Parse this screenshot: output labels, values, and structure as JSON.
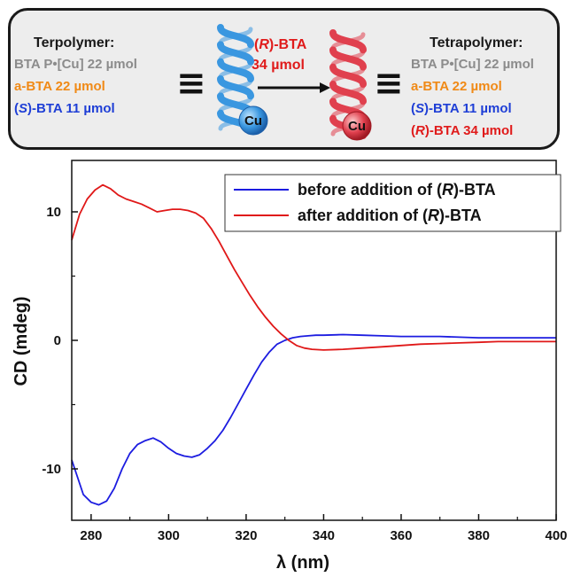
{
  "scheme": {
    "left": {
      "title": "Terpolymer:",
      "lines": [
        {
          "prefix": "",
          "italic": "",
          "suffix": "BTA P•[Cu] 22 µmol",
          "color": "#8c8c8c"
        },
        {
          "prefix": "",
          "italic": "",
          "suffix": "a-BTA  22 µmol",
          "color": "#f08a17"
        },
        {
          "prefix": "(",
          "italic": "S",
          "suffix": ")-BTA  11 µmol",
          "color": "#1f3fd6"
        }
      ]
    },
    "right": {
      "title": "Tetrapolymer:",
      "lines": [
        {
          "prefix": "",
          "italic": "",
          "suffix": "BTA P•[Cu] 22 µmol",
          "color": "#8c8c8c"
        },
        {
          "prefix": "",
          "italic": "",
          "suffix": "a-BTA  22 µmol",
          "color": "#f08a17"
        },
        {
          "prefix": "(",
          "italic": "S",
          "suffix": ")-BTA  11 µmol",
          "color": "#1f3fd6"
        },
        {
          "prefix": "(",
          "italic": "R",
          "suffix": ")-BTA  34 µmol",
          "color": "#e01b1b"
        }
      ]
    },
    "arrow": {
      "line1_prefix": "(",
      "line1_italic": "R",
      "line1_suffix": ")-BTA",
      "line2": "34 µmol",
      "color": "#e01b1b"
    },
    "equiv_symbol": "≡",
    "cu_label": "Cu",
    "helix_colors": {
      "before": "#3a97e0",
      "after": "#e0404e"
    }
  },
  "chart_data": {
    "type": "line",
    "xlabel": "λ (nm)",
    "ylabel": "CD (mdeg)",
    "xlim": [
      275,
      400
    ],
    "ylim": [
      -14,
      14
    ],
    "xticks": [
      280,
      300,
      320,
      340,
      360,
      380,
      400
    ],
    "yticks": [
      {
        "value": 10,
        "label": "10"
      },
      {
        "value": 0,
        "label": "0"
      },
      {
        "value": -10,
        "label": "-10"
      }
    ],
    "grid": false,
    "legend_placement": "top-right",
    "series": [
      {
        "name_prefix": "before addition of (",
        "name_italic": "R",
        "name_suffix": ")-BTA",
        "color": "#1c1ce0",
        "x": [
          275,
          278,
          280,
          282,
          284,
          286,
          288,
          290,
          292,
          294,
          296,
          298,
          300,
          302,
          304,
          306,
          308,
          310,
          312,
          314,
          316,
          318,
          320,
          322,
          324,
          326,
          328,
          330,
          332,
          334,
          336,
          338,
          340,
          345,
          350,
          355,
          360,
          365,
          370,
          375,
          380,
          385,
          390,
          395,
          400
        ],
        "y": [
          -9.3,
          -12.0,
          -12.6,
          -12.8,
          -12.5,
          -11.5,
          -10.0,
          -8.8,
          -8.1,
          -7.8,
          -7.6,
          -7.9,
          -8.4,
          -8.8,
          -9.0,
          -9.1,
          -8.9,
          -8.4,
          -7.8,
          -7.0,
          -6.0,
          -4.9,
          -3.8,
          -2.7,
          -1.7,
          -0.9,
          -0.3,
          0.0,
          0.2,
          0.3,
          0.35,
          0.4,
          0.4,
          0.45,
          0.4,
          0.35,
          0.3,
          0.3,
          0.3,
          0.25,
          0.2,
          0.2,
          0.2,
          0.2,
          0.2
        ]
      },
      {
        "name_prefix": "after addition of (",
        "name_italic": "R",
        "name_suffix": ")-BTA",
        "color": "#e01818",
        "x": [
          275,
          277,
          279,
          281,
          283,
          285,
          287,
          289,
          291,
          293,
          295,
          297,
          299,
          301,
          303,
          305,
          307,
          309,
          311,
          313,
          315,
          317,
          319,
          321,
          323,
          325,
          327,
          329,
          331,
          333,
          335,
          337,
          340,
          345,
          350,
          355,
          360,
          365,
          370,
          375,
          380,
          385,
          390,
          395,
          400
        ],
        "y": [
          7.8,
          9.8,
          11.0,
          11.7,
          12.1,
          11.8,
          11.3,
          11.0,
          10.8,
          10.6,
          10.3,
          10.0,
          10.1,
          10.2,
          10.2,
          10.1,
          9.9,
          9.5,
          8.7,
          7.7,
          6.6,
          5.5,
          4.5,
          3.5,
          2.6,
          1.8,
          1.1,
          0.5,
          0.0,
          -0.4,
          -0.6,
          -0.7,
          -0.75,
          -0.7,
          -0.6,
          -0.5,
          -0.4,
          -0.3,
          -0.25,
          -0.2,
          -0.15,
          -0.1,
          -0.1,
          -0.1,
          -0.1
        ]
      }
    ]
  }
}
